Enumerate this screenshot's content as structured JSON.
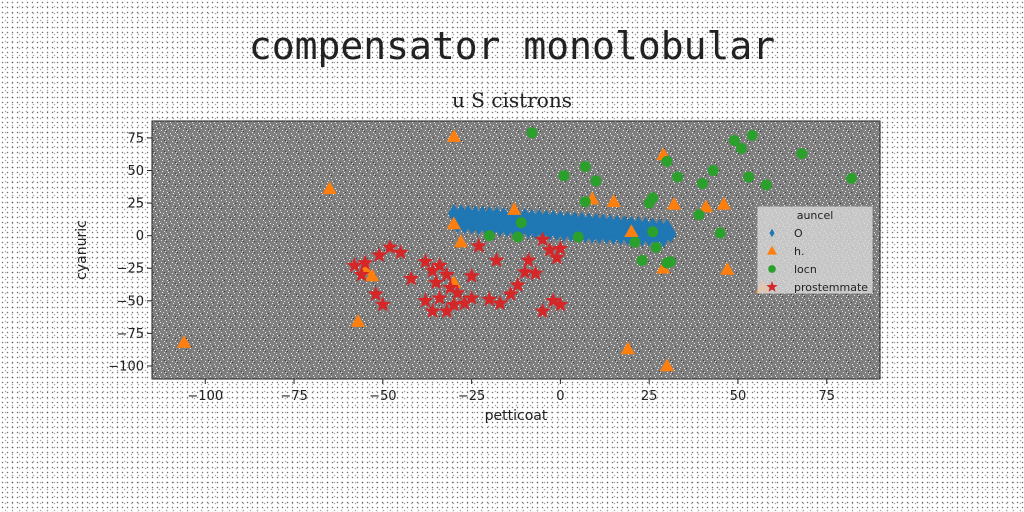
{
  "header": {
    "title": "compensator monolobular",
    "subtitle": "u S cistrons"
  },
  "chart_data": {
    "type": "scatter",
    "title": "u S cistrons",
    "xlabel": "petticoat",
    "ylabel": "cyanuric",
    "xlim": [
      -115,
      90
    ],
    "ylim": [
      -110,
      88
    ],
    "xticks": [
      -100,
      -75,
      -50,
      -25,
      0,
      25,
      50,
      75
    ],
    "yticks": [
      75,
      50,
      25,
      0,
      -25,
      -50,
      -75,
      -100
    ],
    "grid": false,
    "legend": {
      "title": "auncel",
      "placement": "right"
    },
    "series": [
      {
        "name": "O",
        "marker": "diamond",
        "color": "#1f77b4",
        "points": [
          [
            -30,
            17
          ],
          [
            -28,
            16.8
          ],
          [
            -26,
            16.5
          ],
          [
            -24,
            16.2
          ],
          [
            -22,
            15.9
          ],
          [
            -20,
            15.6
          ],
          [
            -18,
            15.3
          ],
          [
            -16,
            15
          ],
          [
            -14,
            14.6
          ],
          [
            -12,
            14.3
          ],
          [
            -10,
            14
          ],
          [
            -8,
            13.6
          ],
          [
            -6,
            13.3
          ],
          [
            -4,
            12.9
          ],
          [
            -2,
            12.6
          ],
          [
            0,
            12.2
          ],
          [
            2,
            11.8
          ],
          [
            4,
            11.4
          ],
          [
            6,
            11
          ],
          [
            8,
            10.6
          ],
          [
            10,
            10.2
          ],
          [
            12,
            9.8
          ],
          [
            14,
            9.4
          ],
          [
            16,
            9
          ],
          [
            18,
            8.5
          ],
          [
            20,
            8.1
          ],
          [
            22,
            7.6
          ],
          [
            24,
            7.2
          ],
          [
            26,
            6.7
          ],
          [
            28,
            6.2
          ],
          [
            30,
            5.7
          ],
          [
            -29,
            9
          ],
          [
            -27,
            8.5
          ],
          [
            -25,
            8
          ],
          [
            -23,
            7.5
          ],
          [
            -21,
            7
          ],
          [
            -19,
            6.6
          ],
          [
            -17,
            6.2
          ],
          [
            -15,
            5.8
          ],
          [
            -13,
            5.4
          ],
          [
            -11,
            5
          ],
          [
            -9,
            4.6
          ],
          [
            -7,
            4.2
          ],
          [
            -5,
            3.8
          ],
          [
            -3,
            3.4
          ],
          [
            -1,
            3
          ],
          [
            1,
            2.6
          ],
          [
            3,
            2.2
          ],
          [
            5,
            1.8
          ],
          [
            7,
            1.4
          ],
          [
            9,
            1
          ],
          [
            11,
            0.7
          ],
          [
            13,
            0.4
          ],
          [
            15,
            0.1
          ],
          [
            17,
            -0.2
          ],
          [
            19,
            -0.5
          ],
          [
            21,
            -0.8
          ],
          [
            23,
            -1.1
          ],
          [
            25,
            -1.4
          ],
          [
            27,
            -1.7
          ],
          [
            29,
            -2
          ],
          [
            31,
            1.5
          ]
        ]
      },
      {
        "name": "h.",
        "marker": "triangle",
        "color": "#ff7f0e",
        "points": [
          [
            -30,
            76
          ],
          [
            -65,
            36
          ],
          [
            -13,
            20
          ],
          [
            -30,
            9
          ],
          [
            -28,
            -5
          ],
          [
            -55,
            -26
          ],
          [
            -53,
            -31
          ],
          [
            -57,
            -66
          ],
          [
            -106,
            -82
          ],
          [
            -30,
            -36
          ],
          [
            9,
            28
          ],
          [
            15,
            26
          ],
          [
            20,
            3
          ],
          [
            29,
            62
          ],
          [
            29,
            -25
          ],
          [
            32,
            24
          ],
          [
            41,
            22
          ],
          [
            46,
            24
          ],
          [
            47,
            -26
          ],
          [
            57,
            -40
          ],
          [
            19,
            -87
          ],
          [
            30,
            -100
          ]
        ]
      },
      {
        "name": "locn",
        "marker": "circle",
        "color": "#2ca02c",
        "points": [
          [
            -8,
            79
          ],
          [
            1,
            46
          ],
          [
            7,
            53
          ],
          [
            10,
            42
          ],
          [
            7,
            26
          ],
          [
            25,
            25
          ],
          [
            26,
            29
          ],
          [
            30,
            57
          ],
          [
            33,
            45
          ],
          [
            40,
            40
          ],
          [
            43,
            50
          ],
          [
            39,
            16
          ],
          [
            49,
            73
          ],
          [
            51,
            67
          ],
          [
            54,
            77
          ],
          [
            53,
            45
          ],
          [
            58,
            39
          ],
          [
            68,
            63
          ],
          [
            82,
            44
          ],
          [
            45,
            2
          ],
          [
            -12,
            -1
          ],
          [
            -20,
            0
          ],
          [
            -11,
            10
          ],
          [
            5,
            -1
          ],
          [
            21,
            -5
          ],
          [
            23,
            -19
          ],
          [
            27,
            -9
          ],
          [
            30,
            -21
          ],
          [
            31,
            -20
          ],
          [
            26,
            3
          ]
        ]
      },
      {
        "name": "prostemmate",
        "marker": "star",
        "color": "#d62728",
        "points": [
          [
            -58,
            -23
          ],
          [
            -55,
            -21
          ],
          [
            -51,
            -15
          ],
          [
            -48,
            -9
          ],
          [
            -56,
            -30
          ],
          [
            -52,
            -45
          ],
          [
            -50,
            -53
          ],
          [
            -42,
            -33
          ],
          [
            -38,
            -20
          ],
          [
            -36,
            -27
          ],
          [
            -34,
            -23
          ],
          [
            -32,
            -30
          ],
          [
            -35,
            -36
          ],
          [
            -38,
            -50
          ],
          [
            -36,
            -58
          ],
          [
            -34,
            -48
          ],
          [
            -32,
            -58
          ],
          [
            -30,
            -53
          ],
          [
            -29,
            -44
          ],
          [
            -27,
            -52
          ],
          [
            -25,
            -48
          ],
          [
            -25,
            -31
          ],
          [
            -23,
            -8
          ],
          [
            -18,
            -19
          ],
          [
            -12,
            -38
          ],
          [
            -9,
            -19
          ],
          [
            -7,
            -29
          ],
          [
            -5,
            -3
          ],
          [
            -3,
            -11
          ],
          [
            -1,
            -17
          ],
          [
            0,
            -10
          ],
          [
            -2,
            -50
          ],
          [
            -5,
            -58
          ],
          [
            0,
            -53
          ],
          [
            -20,
            -49
          ],
          [
            -17,
            -52
          ],
          [
            -14,
            -45
          ],
          [
            -10,
            -28
          ],
          [
            -31,
            -40
          ],
          [
            -45,
            -13
          ]
        ]
      }
    ]
  }
}
